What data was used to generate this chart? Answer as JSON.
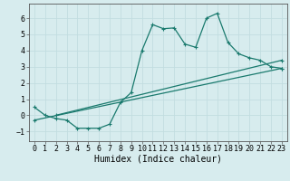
{
  "xlabel": "Humidex (Indice chaleur)",
  "bg_color": "#d7ecee",
  "grid_color": "#c2dde0",
  "line_color": "#1a7a6e",
  "xlim": [
    -0.5,
    23.5
  ],
  "ylim": [
    -1.6,
    6.9
  ],
  "xticks": [
    0,
    1,
    2,
    3,
    4,
    5,
    6,
    7,
    8,
    9,
    10,
    11,
    12,
    13,
    14,
    15,
    16,
    17,
    18,
    19,
    20,
    21,
    22,
    23
  ],
  "yticks": [
    -1,
    0,
    1,
    2,
    3,
    4,
    5,
    6
  ],
  "line1_x": [
    0,
    1,
    2,
    3,
    4,
    5,
    6,
    7,
    8,
    9,
    10,
    11,
    12,
    13,
    14,
    15,
    16,
    17,
    18,
    19,
    20,
    21,
    22,
    23
  ],
  "line1_y": [
    0.5,
    0.0,
    -0.2,
    -0.3,
    -0.8,
    -0.8,
    -0.8,
    -0.55,
    0.8,
    1.4,
    4.0,
    5.6,
    5.35,
    5.4,
    4.4,
    4.2,
    6.0,
    6.3,
    4.5,
    3.8,
    3.55,
    3.4,
    3.0,
    2.9
  ],
  "line2_x": [
    0,
    23
  ],
  "line2_y": [
    -0.3,
    2.9
  ],
  "line3_x": [
    2,
    23
  ],
  "line3_y": [
    0.0,
    3.4
  ],
  "tick_fontsize": 6,
  "xlabel_fontsize": 7
}
